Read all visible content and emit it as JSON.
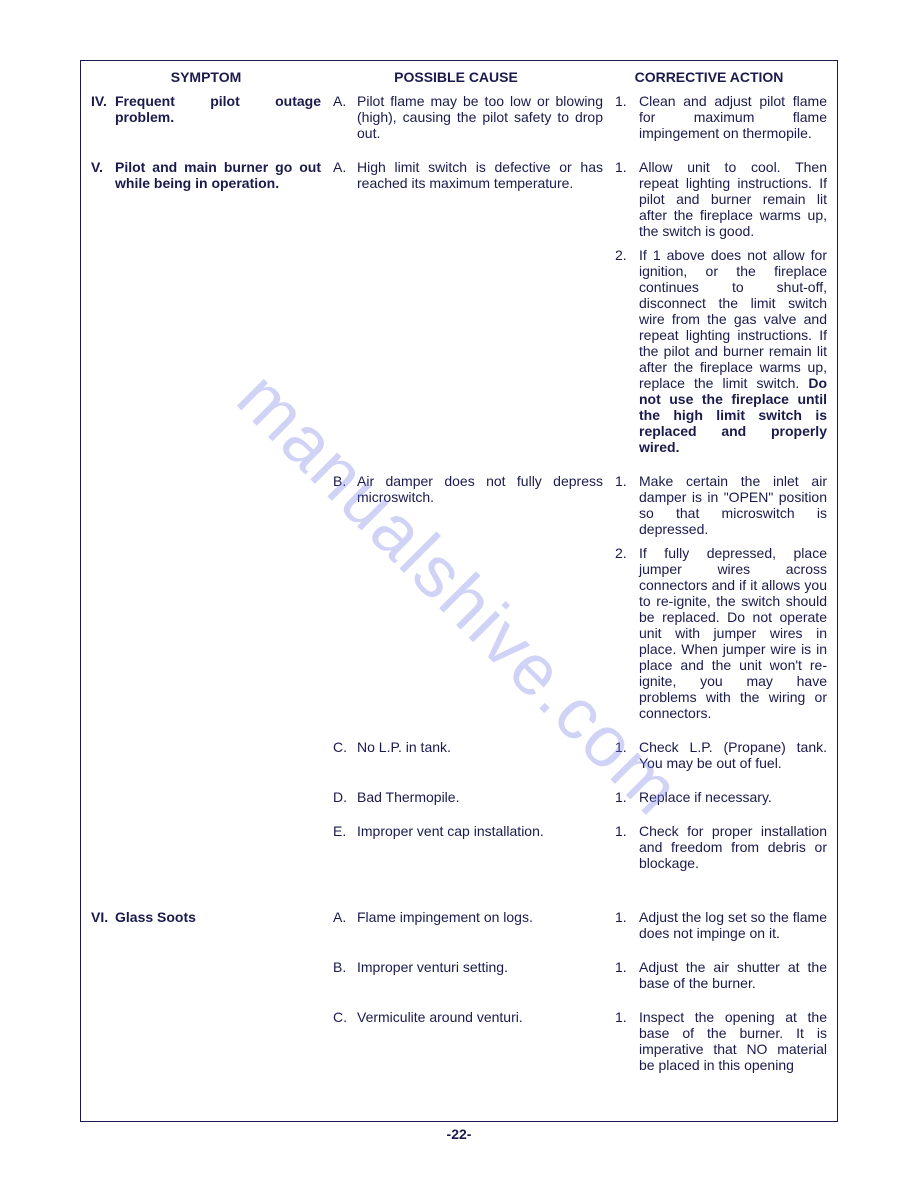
{
  "headers": {
    "symptom": "SYMPTOM",
    "cause": "POSSIBLE CAUSE",
    "action": "CORRECTIVE ACTION"
  },
  "rows": [
    {
      "symptom_marker": "IV.",
      "symptom_text": "Frequent pilot outage problem.",
      "cause_marker": "A.",
      "cause_text": "Pilot flame may be too low or blowing (high), causing the pilot safety to drop out.",
      "actions": [
        {
          "marker": "1.",
          "text": "Clean and adjust pilot flame for maximum flame impingement on thermopile."
        }
      ]
    },
    {
      "symptom_marker": "V.",
      "symptom_text": "Pilot and main burner go out while being in operation.",
      "cause_marker": "A.",
      "cause_text": "High limit switch is defective or has reached its maximum temperature.",
      "actions": [
        {
          "marker": "1.",
          "text": "Allow unit to cool. Then repeat lighting instructions. If pilot and burner remain lit after the fireplace warms up, the switch is good."
        },
        {
          "marker": "2.",
          "text": "If 1 above does not allow for ignition, or the fireplace continues to shut-off, disconnect the limit switch wire from the gas valve and repeat lighting instructions. If the pilot and burner remain lit after the fireplace warms up, replace the limit switch. ",
          "bold_tail": "Do not use the fireplace until the high limit switch is replaced and properly wired."
        }
      ]
    },
    {
      "symptom_marker": "",
      "symptom_text": "",
      "cause_marker": "B.",
      "cause_text": "Air damper does not fully depress microswitch.",
      "actions": [
        {
          "marker": "1.",
          "text": "Make certain the inlet air damper is in \"OPEN\" position so that microswitch is depressed."
        },
        {
          "marker": "2.",
          "text": "If fully depressed, place jumper wires across connectors and if it allows you to re-ignite, the switch should be replaced. Do not operate unit with jumper wires in place. When jumper wire is in place and the unit won't re-ignite, you may have problems with the wiring or connectors."
        }
      ]
    },
    {
      "symptom_marker": "",
      "symptom_text": "",
      "cause_marker": "C.",
      "cause_text": "No L.P. in tank.",
      "actions": [
        {
          "marker": "1.",
          "text": "Check L.P. (Propane) tank. You may be out of fuel."
        }
      ]
    },
    {
      "symptom_marker": "",
      "symptom_text": "",
      "cause_marker": "D.",
      "cause_text": "Bad Thermopile.",
      "actions": [
        {
          "marker": "1.",
          "text": "Replace if necessary."
        }
      ]
    },
    {
      "symptom_marker": "",
      "symptom_text": "",
      "cause_marker": "E.",
      "cause_text": "Improper vent cap installation.",
      "actions": [
        {
          "marker": "1.",
          "text": "Check for proper installation and freedom from debris or blockage."
        }
      ]
    },
    {
      "symptom_marker": "VI.",
      "symptom_text": "Glass Soots",
      "cause_marker": "A.",
      "cause_text": "Flame impingement on logs.",
      "actions": [
        {
          "marker": "1.",
          "text": "Adjust the log set so the flame does not impinge on it."
        }
      ]
    },
    {
      "symptom_marker": "",
      "symptom_text": "",
      "cause_marker": "B.",
      "cause_text": "Improper venturi setting.",
      "actions": [
        {
          "marker": "1.",
          "text": "Adjust the air shutter at the base of the burner."
        }
      ]
    },
    {
      "symptom_marker": "",
      "symptom_text": "",
      "cause_marker": "C.",
      "cause_text": "Vermiculite around venturi.",
      "actions": [
        {
          "marker": "1.",
          "text": "Inspect the opening at the base of the burner. It is imperative that NO material be placed in this opening"
        }
      ]
    }
  ],
  "page_number": "-22-",
  "watermark": "manualshive.com"
}
